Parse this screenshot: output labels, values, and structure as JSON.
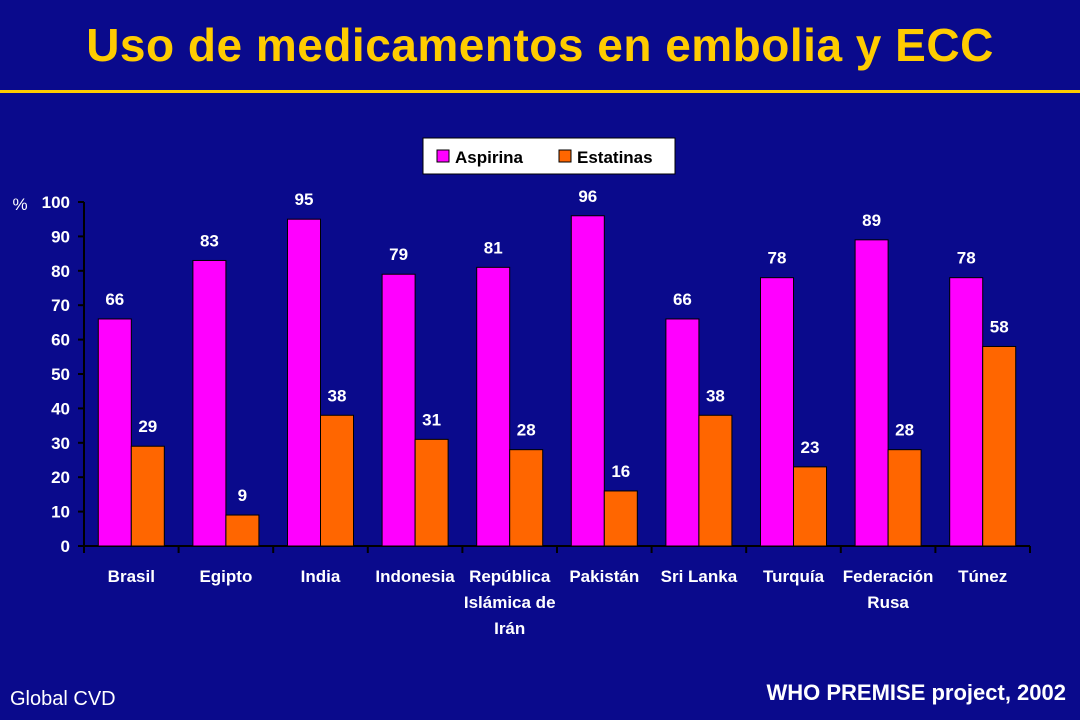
{
  "slide": {
    "title": "Uso de medicamentos en embolia y ECC",
    "footer_left": "Global CVD",
    "footer_right": "WHO PREMISE project, 2002"
  },
  "colors": {
    "background": "#0a0a8c",
    "title": "#ffcc00",
    "aspirina": "#ff00ff",
    "estatinas": "#ff6600",
    "text": "#ffffff"
  },
  "chart_data": {
    "type": "bar",
    "ylabel": "%",
    "ylim": [
      0,
      100
    ],
    "yticks": [
      0,
      10,
      20,
      30,
      40,
      50,
      60,
      70,
      80,
      90,
      100
    ],
    "grid": false,
    "legend_position": "top",
    "categories": [
      [
        "Brasil"
      ],
      [
        "Egipto"
      ],
      [
        "India"
      ],
      [
        "Indonesia"
      ],
      [
        "República",
        "Islámica de",
        "Irán"
      ],
      [
        "Pakistán"
      ],
      [
        "Sri Lanka"
      ],
      [
        "Turquía"
      ],
      [
        "Federación",
        "Rusa"
      ],
      [
        "Túnez"
      ]
    ],
    "series": [
      {
        "name": "Aspirina",
        "color": "#ff00ff",
        "values": [
          66,
          83,
          95,
          79,
          81,
          96,
          66,
          78,
          89,
          78
        ]
      },
      {
        "name": "Estatinas",
        "color": "#ff6600",
        "values": [
          29,
          9,
          38,
          31,
          28,
          16,
          38,
          23,
          28,
          58
        ]
      }
    ]
  }
}
